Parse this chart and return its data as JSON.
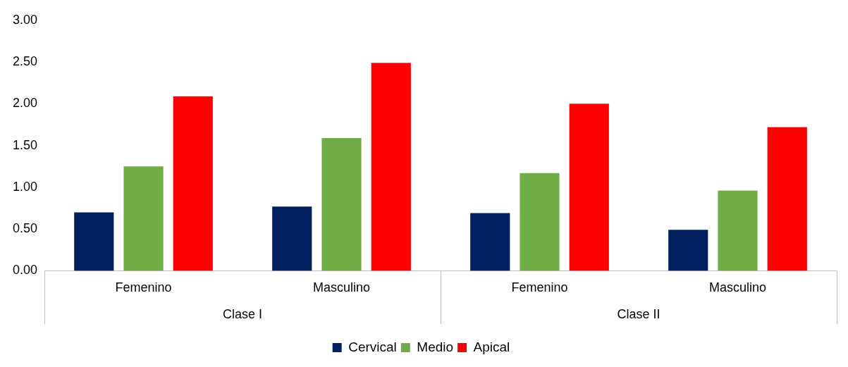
{
  "chart_data": {
    "type": "bar",
    "categories": [
      "Femenino",
      "Masculino",
      "Femenino",
      "Masculino"
    ],
    "series": [
      {
        "name": "Cervical",
        "color": "#002060",
        "values": [
          0.7,
          0.77,
          0.69,
          0.49
        ]
      },
      {
        "name": "Medio",
        "color": "#70ad47",
        "values": [
          1.25,
          1.59,
          1.17,
          0.96
        ]
      },
      {
        "name": "Apical",
        "color": "#ff0000",
        "values": [
          2.09,
          2.49,
          2.0,
          1.72
        ]
      }
    ],
    "annotations": [
      "Clase I",
      "Clase II"
    ],
    "ylim": [
      0,
      3
    ],
    "yticks": [
      {
        "value": 0,
        "label": "0.00"
      },
      {
        "value": 0.5,
        "label": "0.50"
      },
      {
        "value": 1,
        "label": "1.00"
      },
      {
        "value": 1.5,
        "label": "1.50"
      },
      {
        "value": 2,
        "label": "2.00"
      },
      {
        "value": 2.5,
        "label": "2.50"
      },
      {
        "value": 3,
        "label": "3.00"
      }
    ],
    "grid": false,
    "legend": "bottom"
  }
}
